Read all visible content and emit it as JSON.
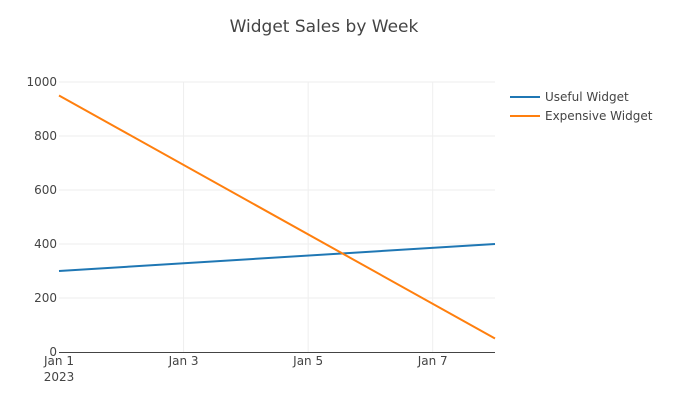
{
  "chart_data": {
    "type": "line",
    "title": "Widget Sales by Week",
    "xlabel": "",
    "ylabel": "",
    "x": [
      "2023-01-01",
      "2023-01-08"
    ],
    "series": [
      {
        "name": "Useful Widget",
        "color": "#1f77b4",
        "values": [
          300,
          400
        ]
      },
      {
        "name": "Expensive Widget",
        "color": "#ff7f0e",
        "values": [
          950,
          50
        ]
      }
    ],
    "xlim": [
      "2023-01-01",
      "2023-01-08"
    ],
    "ylim": [
      0,
      1000
    ],
    "xticks": [
      {
        "value": "2023-01-01",
        "label": "Jan 1",
        "sublabel": "2023"
      },
      {
        "value": "2023-01-03",
        "label": "Jan 3"
      },
      {
        "value": "2023-01-05",
        "label": "Jan 5"
      },
      {
        "value": "2023-01-07",
        "label": "Jan 7"
      }
    ],
    "yticks": [
      0,
      200,
      400,
      600,
      800,
      1000
    ],
    "grid": true,
    "legend_position": "top-right"
  }
}
